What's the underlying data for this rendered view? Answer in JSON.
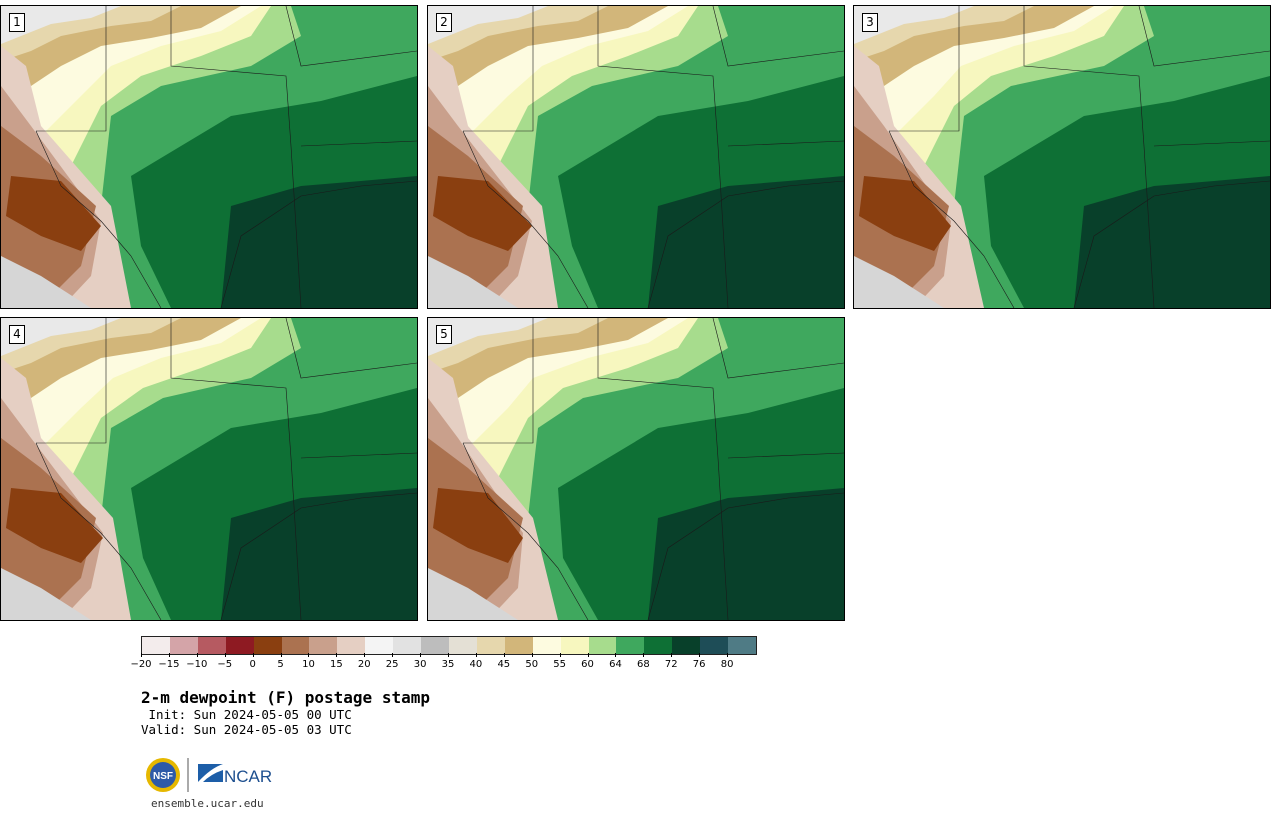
{
  "panels": [
    {
      "number": "1"
    },
    {
      "number": "2"
    },
    {
      "number": "3"
    },
    {
      "number": "4"
    },
    {
      "number": "5"
    }
  ],
  "colorbar": {
    "colors": [
      "#f3ecec",
      "#d4a4a8",
      "#b65a61",
      "#8e1a22",
      "#8a3f10",
      "#ab7250",
      "#c9a08c",
      "#e5cfc3",
      "#f4f4f4",
      "#e2e2e2",
      "#bdbdbd",
      "#e4e0d5",
      "#e6d7ad",
      "#d2b67a",
      "#fdfbe0",
      "#f7f7bf",
      "#a7dc8d",
      "#3fa85e",
      "#0e7035",
      "#08402a",
      "#1e4d57",
      "#4f7b85"
    ],
    "tick_labels": [
      "−20",
      "−15",
      "−10",
      "−5",
      "0",
      "5",
      "10",
      "15",
      "20",
      "25",
      "30",
      "35",
      "40",
      "45",
      "50",
      "55",
      "60",
      "64",
      "68",
      "72",
      "76",
      "80"
    ]
  },
  "title": "2-m dewpoint (F) postage stamp",
  "init": " Init: Sun 2024-05-05 00 UTC",
  "valid": "Valid: Sun 2024-05-05 03 UTC",
  "footer": {
    "url": "ensemble.ucar.edu",
    "nsf_logo_text": "NSF",
    "ncar_logo_text": "NCAR"
  }
}
